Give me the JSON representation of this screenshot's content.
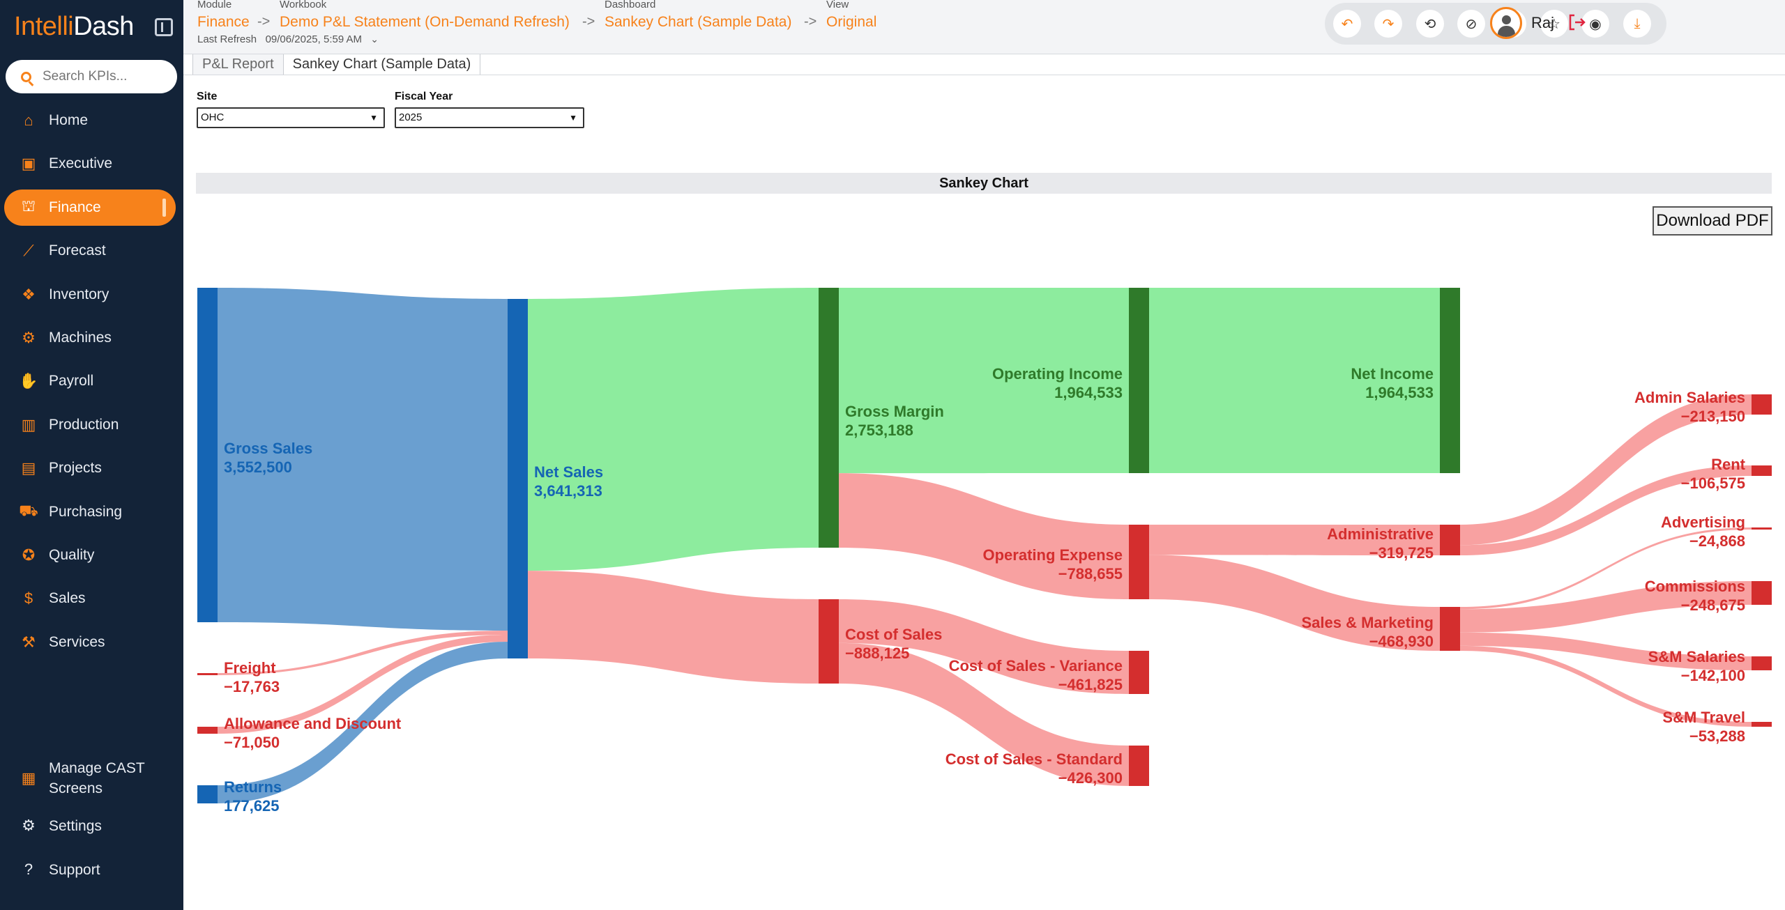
{
  "app": {
    "logo_part1": "Intelli",
    "logo_part2": "Dash"
  },
  "search": {
    "placeholder": "Search KPIs..."
  },
  "nav": [
    {
      "label": "Home",
      "icon": "home-icon"
    },
    {
      "label": "Executive",
      "icon": "briefcase-icon"
    },
    {
      "label": "Finance",
      "icon": "bank-icon",
      "active": true
    },
    {
      "label": "Forecast",
      "icon": "line-chart-icon"
    },
    {
      "label": "Inventory",
      "icon": "boxes-icon"
    },
    {
      "label": "Machines",
      "icon": "gear-icon"
    },
    {
      "label": "Payroll",
      "icon": "money-hand-icon"
    },
    {
      "label": "Production",
      "icon": "factory-icon"
    },
    {
      "label": "Projects",
      "icon": "clipboard-icon"
    },
    {
      "label": "Purchasing",
      "icon": "cart-icon"
    },
    {
      "label": "Quality",
      "icon": "award-icon"
    },
    {
      "label": "Sales",
      "icon": "dollar-icon"
    },
    {
      "label": "Services",
      "icon": "wrench-icon"
    }
  ],
  "bottom_nav": [
    {
      "label": "Manage CAST Screens",
      "icon": "cast-screen-icon"
    },
    {
      "label": "Settings",
      "icon": "settings-icon"
    },
    {
      "label": "Support",
      "icon": "help-icon"
    }
  ],
  "breadcrumb": {
    "module_caption": "Module",
    "module": "Finance",
    "workbook_caption": "Workbook",
    "workbook": "Demo P&L Statement (On-Demand Refresh)",
    "dashboard_caption": "Dashboard",
    "dashboard": "Sankey Chart (Sample Data)",
    "view_caption": "View",
    "view": "Original",
    "separator": "->",
    "last_refresh_label": "Last Refresh",
    "last_refresh_value": "09/06/2025, 5:59 AM"
  },
  "toolbar": [
    "undo-icon",
    "redo-icon",
    "revert-icon",
    "refresh-off-icon",
    "pause-icon",
    "star-icon",
    "eye-icon",
    "download-icon"
  ],
  "user": {
    "name": "Raj"
  },
  "tabs": [
    {
      "label": "P&L Report",
      "active": false
    },
    {
      "label": "Sankey Chart (Sample Data)",
      "active": true
    }
  ],
  "filters": {
    "site_label": "Site",
    "site_value": "OHC",
    "year_label": "Fiscal Year",
    "year_value": "2025"
  },
  "chart_title": "Sankey Chart",
  "download_label": "Download PDF",
  "colors": {
    "accent": "#f7821b",
    "sidebar": "#132338",
    "blue_node": "#1565b4",
    "blue_link": "#6a9fd0",
    "green_node": "#2f7a2a",
    "green_link": "#8dec9e",
    "red_node": "#d42e2e",
    "red_link": "#f8a1a1"
  },
  "chart_data": {
    "type": "sankey",
    "title": "Sankey Chart",
    "nodes": [
      {
        "id": "gross_sales",
        "name": "Gross Sales",
        "value_label": "3,552,500",
        "value": 3552500,
        "color": "blue"
      },
      {
        "id": "freight",
        "name": "Freight",
        "value_label": "−17,763",
        "value": -17763,
        "color": "red"
      },
      {
        "id": "allowance",
        "name": "Allowance and Discount",
        "value_label": "−71,050",
        "value": -71050,
        "color": "red"
      },
      {
        "id": "returns",
        "name": "Returns",
        "value_label": "177,625",
        "value": 177625,
        "color": "blue"
      },
      {
        "id": "net_sales",
        "name": "Net Sales",
        "value_label": "3,641,313",
        "value": 3641313,
        "color": "blue"
      },
      {
        "id": "gross_margin",
        "name": "Gross Margin",
        "value_label": "2,753,188",
        "value": 2753188,
        "color": "green"
      },
      {
        "id": "cost_of_sales",
        "name": "Cost of Sales",
        "value_label": "−888,125",
        "value": -888125,
        "color": "red"
      },
      {
        "id": "operating_income",
        "name": "Operating Income",
        "value_label": "1,964,533",
        "value": 1964533,
        "color": "green"
      },
      {
        "id": "operating_expense",
        "name": "Operating Expense",
        "value_label": "−788,655",
        "value": -788655,
        "color": "red"
      },
      {
        "id": "cos_variance",
        "name": "Cost of Sales - Variance",
        "value_label": "−461,825",
        "value": -461825,
        "color": "red"
      },
      {
        "id": "cos_standard",
        "name": "Cost of Sales - Standard",
        "value_label": "−426,300",
        "value": -426300,
        "color": "red"
      },
      {
        "id": "net_income",
        "name": "Net Income",
        "value_label": "1,964,533",
        "value": 1964533,
        "color": "green"
      },
      {
        "id": "administrative",
        "name": "Administrative",
        "value_label": "−319,725",
        "value": -319725,
        "color": "red"
      },
      {
        "id": "sales_marketing",
        "name": "Sales & Marketing",
        "value_label": "−468,930",
        "value": -468930,
        "color": "red"
      },
      {
        "id": "admin_salaries",
        "name": "Admin Salaries",
        "value_label": "−213,150",
        "value": -213150,
        "color": "red"
      },
      {
        "id": "rent",
        "name": "Rent",
        "value_label": "−106,575",
        "value": -106575,
        "color": "red"
      },
      {
        "id": "advertising",
        "name": "Advertising",
        "value_label": "−24,868",
        "value": -24868,
        "color": "red"
      },
      {
        "id": "commissions",
        "name": "Commissions",
        "value_label": "−248,675",
        "value": -248675,
        "color": "red"
      },
      {
        "id": "sm_salaries",
        "name": "S&M Salaries",
        "value_label": "−142,100",
        "value": -142100,
        "color": "red"
      },
      {
        "id": "sm_travel",
        "name": "S&M Travel",
        "value_label": "−53,288",
        "value": -53288,
        "color": "red"
      }
    ],
    "links": [
      {
        "source": "gross_sales",
        "target": "net_sales",
        "value": 3552500
      },
      {
        "source": "freight",
        "target": "net_sales",
        "value": 17763
      },
      {
        "source": "allowance",
        "target": "net_sales",
        "value": 71050
      },
      {
        "source": "returns",
        "target": "net_sales",
        "value": 177625
      },
      {
        "source": "net_sales",
        "target": "gross_margin",
        "value": 2753188
      },
      {
        "source": "net_sales",
        "target": "cost_of_sales",
        "value": 888125
      },
      {
        "source": "gross_margin",
        "target": "operating_income",
        "value": 1964533
      },
      {
        "source": "gross_margin",
        "target": "operating_expense",
        "value": 788655
      },
      {
        "source": "cost_of_sales",
        "target": "cos_variance",
        "value": 461825
      },
      {
        "source": "cost_of_sales",
        "target": "cos_standard",
        "value": 426300
      },
      {
        "source": "operating_income",
        "target": "net_income",
        "value": 1964533
      },
      {
        "source": "operating_expense",
        "target": "administrative",
        "value": 319725
      },
      {
        "source": "operating_expense",
        "target": "sales_marketing",
        "value": 468930
      },
      {
        "source": "administrative",
        "target": "admin_salaries",
        "value": 213150
      },
      {
        "source": "administrative",
        "target": "rent",
        "value": 106575
      },
      {
        "source": "sales_marketing",
        "target": "advertising",
        "value": 24868
      },
      {
        "source": "sales_marketing",
        "target": "commissions",
        "value": 248675
      },
      {
        "source": "sales_marketing",
        "target": "sm_salaries",
        "value": 142100
      },
      {
        "source": "sales_marketing",
        "target": "sm_travel",
        "value": 53288
      }
    ]
  }
}
